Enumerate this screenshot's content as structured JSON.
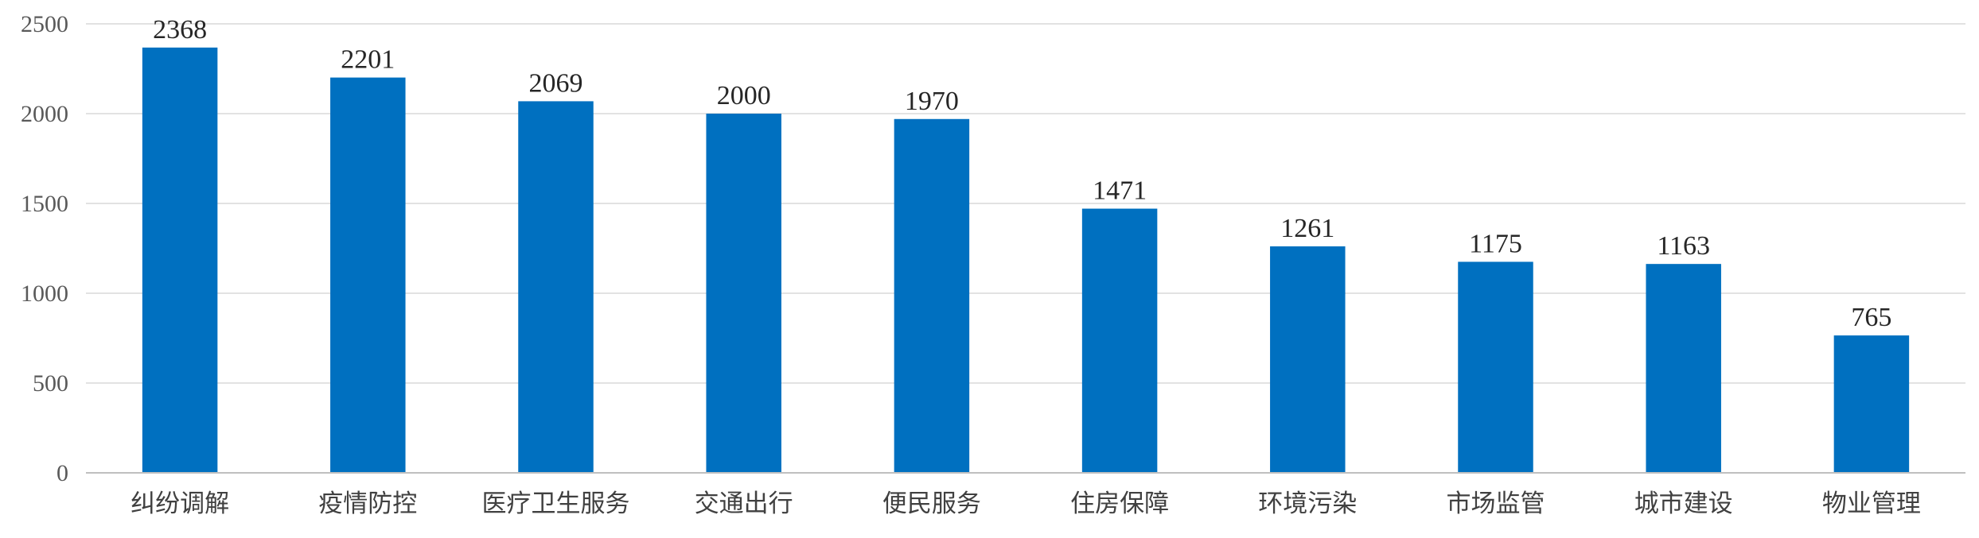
{
  "chart_data": {
    "type": "bar",
    "title": "",
    "xlabel": "",
    "ylabel": "",
    "categories": [
      "纠纷调解",
      "疫情防控",
      "医疗卫生服务",
      "交通出行",
      "便民服务",
      "住房保障",
      "环境污染",
      "市场监管",
      "城市建设",
      "物业管理"
    ],
    "values": [
      2368,
      2201,
      2069,
      2000,
      1970,
      1471,
      1261,
      1175,
      1163,
      765
    ],
    "ylim": [
      0,
      2500
    ],
    "yticks": [
      0,
      500,
      1000,
      1500,
      2000,
      2500
    ],
    "grid": true,
    "legend": "none",
    "bar_color": "#0070C0"
  }
}
